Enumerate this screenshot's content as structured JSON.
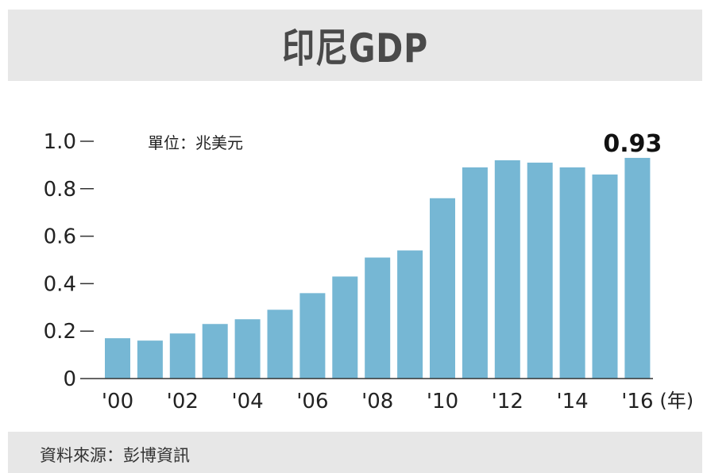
{
  "title": "印尼GDP",
  "source": "資料來源：彭博資訊",
  "colors": {
    "bar": "#76b7d4",
    "axis": "#333333",
    "header_bg": "#e7e7e7"
  },
  "chart_data": {
    "type": "bar",
    "title": "印尼GDP",
    "unit_label": "單位：兆美元",
    "x_unit_label": "(年)",
    "categories": [
      "'00",
      "'01",
      "'02",
      "'03",
      "'04",
      "'05",
      "'06",
      "'07",
      "'08",
      "'09",
      "'10",
      "'11",
      "'12",
      "'13",
      "'14",
      "'15",
      "'16"
    ],
    "x_tick_labels": [
      "'00",
      "",
      "'02",
      "",
      "'04",
      "",
      "'06",
      "",
      "'08",
      "",
      "'10",
      "",
      "'12",
      "",
      "'14",
      "",
      "'16"
    ],
    "values": [
      0.17,
      0.16,
      0.19,
      0.23,
      0.25,
      0.29,
      0.36,
      0.43,
      0.51,
      0.54,
      0.76,
      0.89,
      0.92,
      0.91,
      0.89,
      0.86,
      0.93
    ],
    "highlight": {
      "index": 16,
      "label": "0.93"
    },
    "ylim": [
      0,
      1.0
    ],
    "y_ticks": [
      {
        "value": 0,
        "label": "0"
      },
      {
        "value": 0.2,
        "label": "0.2"
      },
      {
        "value": 0.4,
        "label": "0.4"
      },
      {
        "value": 0.6,
        "label": "0.6"
      },
      {
        "value": 0.8,
        "label": "0.8"
      },
      {
        "value": 1.0,
        "label": "1.0"
      }
    ]
  }
}
